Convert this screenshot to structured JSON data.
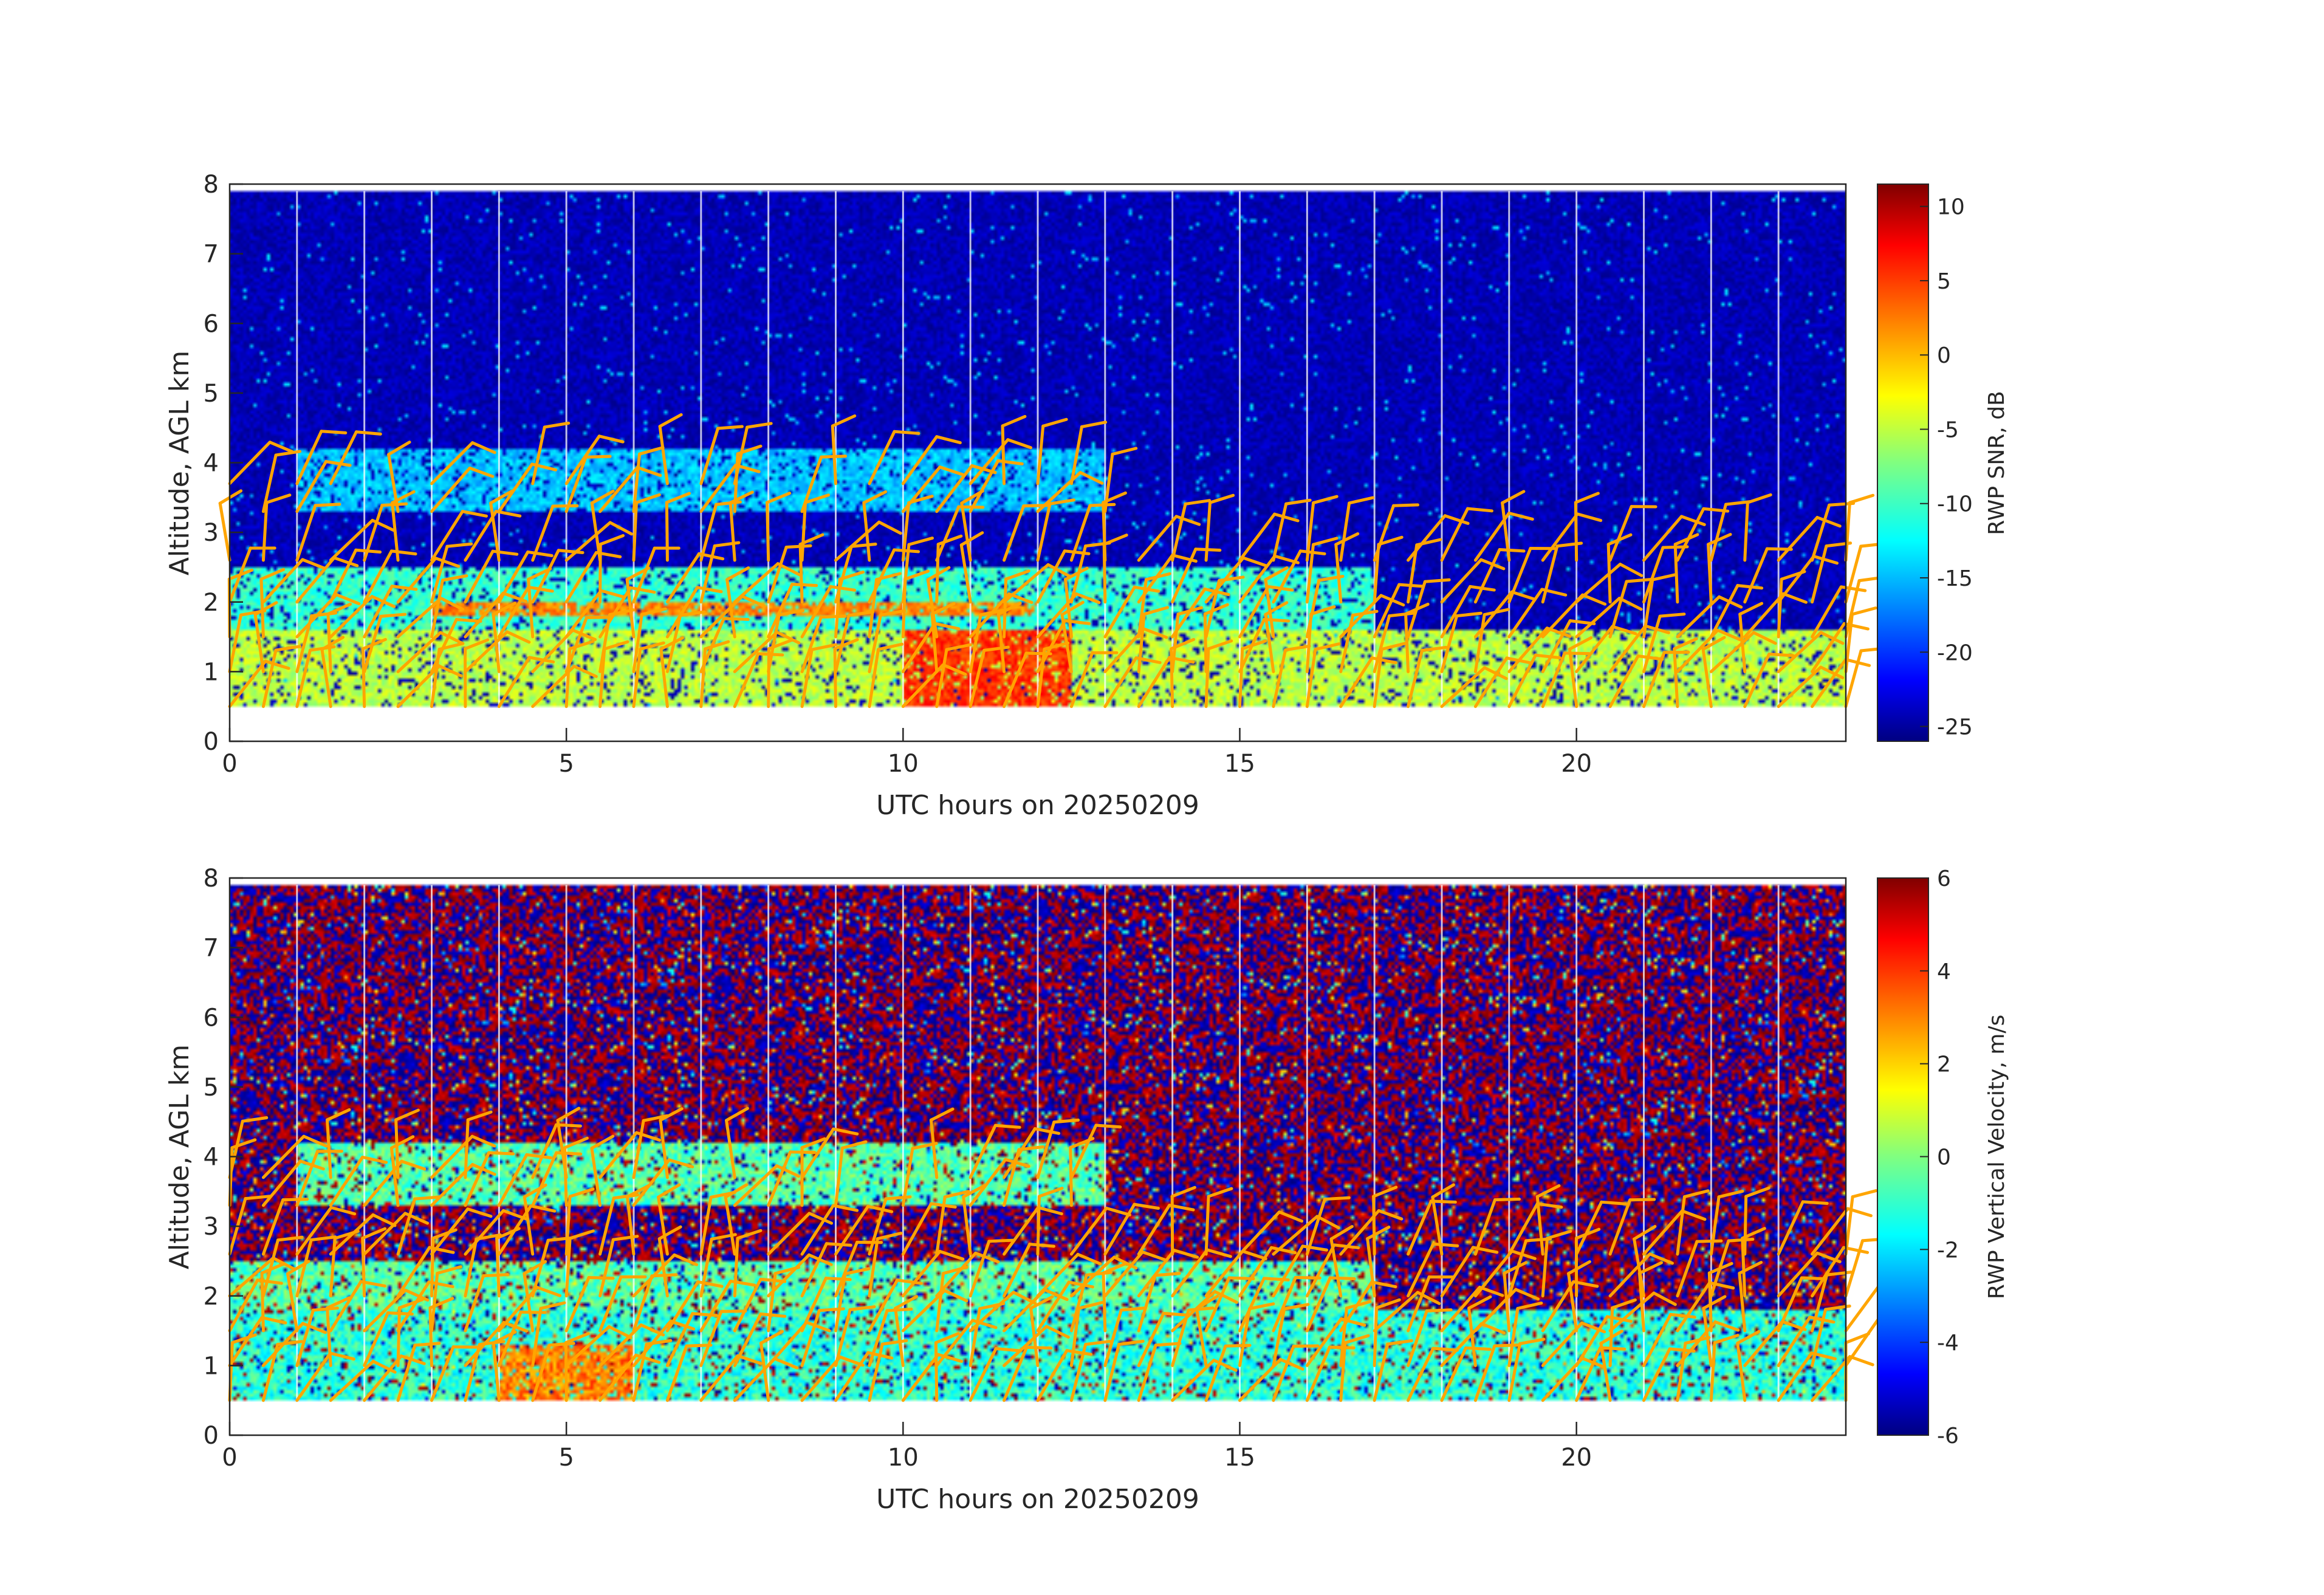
{
  "chart_data": [
    {
      "type": "heatmap",
      "xlabel": "UTC hours on 20250209",
      "ylabel": "Altitude, AGL km",
      "xlim": [
        0,
        24
      ],
      "ylim": [
        0,
        8
      ],
      "xticks": [
        "0",
        "5",
        "10",
        "15",
        "20"
      ],
      "yticks": [
        "0",
        "1",
        "2",
        "3",
        "4",
        "5",
        "6",
        "7",
        "8"
      ],
      "colorbar": {
        "label": "RWP SNR, dB",
        "range": [
          -26,
          11.5
        ],
        "ticks": [
          "10",
          "5",
          "0",
          "-5",
          "-10",
          "-15",
          "-20",
          "-25"
        ],
        "tick_values": [
          10,
          5,
          0,
          -5,
          -10,
          -15,
          -20,
          -25
        ],
        "colormap": "jet"
      },
      "data_range_km": [
        0.5,
        7.9
      ],
      "background_value": -24,
      "layers": [
        {
          "name": "low-level high SNR",
          "t": [
            0,
            24
          ],
          "z": [
            0.5,
            1.6
          ],
          "value": -5
        },
        {
          "name": "band near 2 km",
          "t": [
            0,
            17
          ],
          "z": [
            1.6,
            2.5
          ],
          "value": -10
        },
        {
          "name": "strong layer",
          "t": [
            3,
            12
          ],
          "z": [
            1.8,
            2.0
          ],
          "value": 2
        },
        {
          "name": "core",
          "t": [
            10,
            12.5
          ],
          "z": [
            0.5,
            1.6
          ],
          "value": 5
        },
        {
          "name": "elevated patches",
          "t": [
            1,
            13
          ],
          "z": [
            3.3,
            4.2
          ],
          "value": -14
        }
      ],
      "scan_gaps_hours": [
        1,
        2,
        3,
        4,
        5,
        6,
        7,
        8,
        9,
        10,
        11,
        12,
        13,
        14,
        15,
        16,
        17,
        18,
        19,
        20,
        21,
        22,
        23
      ],
      "wind_barbs": {
        "color": "#ffa500",
        "levels_km": [
          0.5,
          1.0,
          1.5,
          2.0,
          2.6,
          3.3,
          3.7
        ]
      }
    },
    {
      "type": "heatmap",
      "xlabel": "UTC hours on 20250209",
      "ylabel": "Altitude, AGL km",
      "xlim": [
        0,
        24
      ],
      "ylim": [
        0,
        8
      ],
      "xticks": [
        "0",
        "5",
        "10",
        "15",
        "20"
      ],
      "yticks": [
        "0",
        "1",
        "2",
        "3",
        "4",
        "5",
        "6",
        "7",
        "8"
      ],
      "colorbar": {
        "label": "RWP Vertical Velocity, m/s",
        "range": [
          -6,
          6
        ],
        "ticks": [
          "6",
          "4",
          "2",
          "0",
          "-2",
          "-4",
          "-6"
        ],
        "tick_values": [
          6,
          4,
          2,
          0,
          -2,
          -4,
          -6
        ],
        "colormap": "jet"
      },
      "data_range_km": [
        0.5,
        7.9
      ],
      "background": "noise",
      "layers": [
        {
          "name": "low-level near-zero velocity",
          "t": [
            0,
            24
          ],
          "z": [
            0.5,
            1.8
          ],
          "value": -1
        },
        {
          "name": "band near 2 km",
          "t": [
            0,
            17
          ],
          "z": [
            1.8,
            2.5
          ],
          "value": -0.5
        },
        {
          "name": "updraft patches",
          "t": [
            4,
            6
          ],
          "z": [
            0.5,
            1.3
          ],
          "value": 3
        },
        {
          "name": "elevated patches",
          "t": [
            1,
            13
          ],
          "z": [
            3.3,
            4.2
          ],
          "value": -0.5
        }
      ],
      "scan_gaps_hours": [
        1,
        2,
        3,
        4,
        5,
        6,
        7,
        8,
        9,
        10,
        11,
        12,
        13,
        14,
        15,
        16,
        17,
        18,
        19,
        20,
        21,
        22,
        23
      ],
      "wind_barbs": {
        "color": "#ffa500",
        "levels_km": [
          0.5,
          1.0,
          1.5,
          2.0,
          2.6,
          3.3,
          3.7
        ]
      }
    }
  ]
}
